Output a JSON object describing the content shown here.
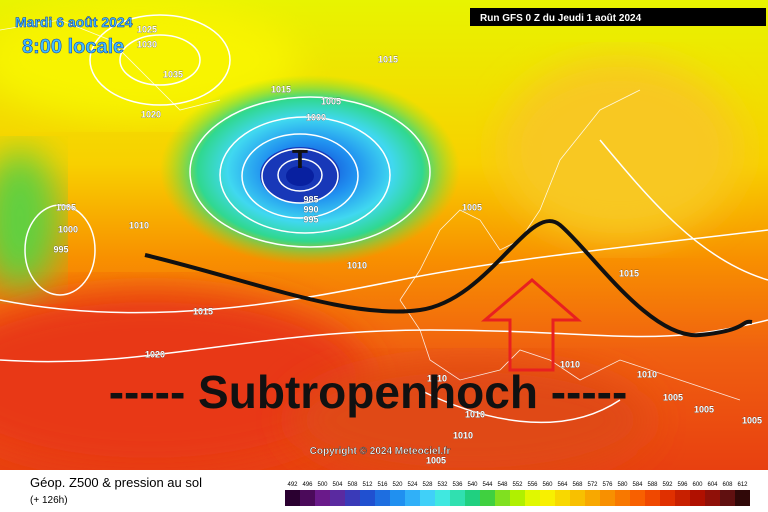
{
  "header": {
    "date": "Mardi 6 août 2024",
    "time": "8:00 locale",
    "run": "Run GFS 0 Z du Jeudi 1 août 2024"
  },
  "annotation": "----- Subtropenhoch -----",
  "low_marker": "T",
  "isobar_labels": [
    "1025",
    "1030",
    "1035",
    "1015",
    "1015",
    "1020",
    "1005",
    "1000",
    "985",
    "990",
    "995",
    "1005",
    "1000",
    "995",
    "1010",
    "1010",
    "1015",
    "1020",
    "1005",
    "1010",
    "1010",
    "1010",
    "1015",
    "1005",
    "1005",
    "1005",
    "1010",
    "1005",
    "1010"
  ],
  "copyright": "Copyright © 2024 Meteociel.fr",
  "legend": {
    "title": "Géop. Z500 & pression au sol",
    "lead": "(+ 126h)",
    "labels": [
      492,
      496,
      500,
      504,
      508,
      512,
      516,
      520,
      524,
      528,
      532,
      536,
      540,
      544,
      548,
      552,
      556,
      560,
      564,
      568,
      572,
      576,
      580,
      584,
      588,
      592,
      596,
      600,
      604,
      608,
      612
    ],
    "colors": [
      "#2a0030",
      "#4b0a5a",
      "#6a1a8a",
      "#5a2aa0",
      "#3a3ab8",
      "#2050d0",
      "#1e6ee0",
      "#2090f0",
      "#30b0f8",
      "#40d0f8",
      "#40e8e0",
      "#30e0b0",
      "#20d080",
      "#40d040",
      "#80e020",
      "#b0f000",
      "#e0f800",
      "#f8f000",
      "#f8d800",
      "#f8c000",
      "#f8a800",
      "#f89000",
      "#f87800",
      "#f86000",
      "#f04800",
      "#e03000",
      "#c82000",
      "#b01000",
      "#901008",
      "#601010",
      "#300808"
    ]
  }
}
